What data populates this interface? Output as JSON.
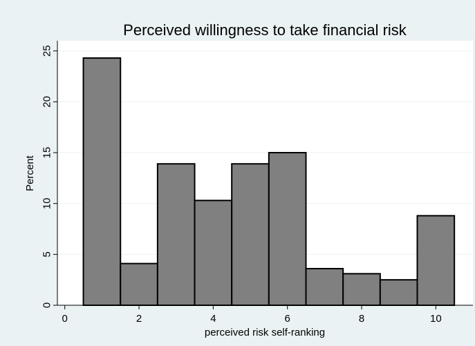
{
  "chart_data": {
    "type": "bar",
    "title": "Perceived willingness to take financial risk",
    "xlabel": "perceived risk self-ranking",
    "ylabel": "Percent",
    "xlim": [
      -0.2,
      11
    ],
    "ylim": [
      0,
      26
    ],
    "xticks": [
      0,
      2,
      4,
      6,
      8,
      10
    ],
    "yticks": [
      0,
      5,
      10,
      15,
      20,
      25
    ],
    "grid": true,
    "bar_width": 1,
    "x": [
      1,
      2,
      3,
      4,
      5,
      6,
      7,
      8,
      9,
      10
    ],
    "values": [
      24.3,
      4.1,
      13.9,
      10.3,
      13.9,
      15.0,
      3.6,
      3.1,
      2.5,
      8.8
    ],
    "colors": {
      "background": "#eaf2f3",
      "plot_background": "#ffffff",
      "bar_fill": "#808080",
      "bar_stroke": "#000000"
    }
  }
}
